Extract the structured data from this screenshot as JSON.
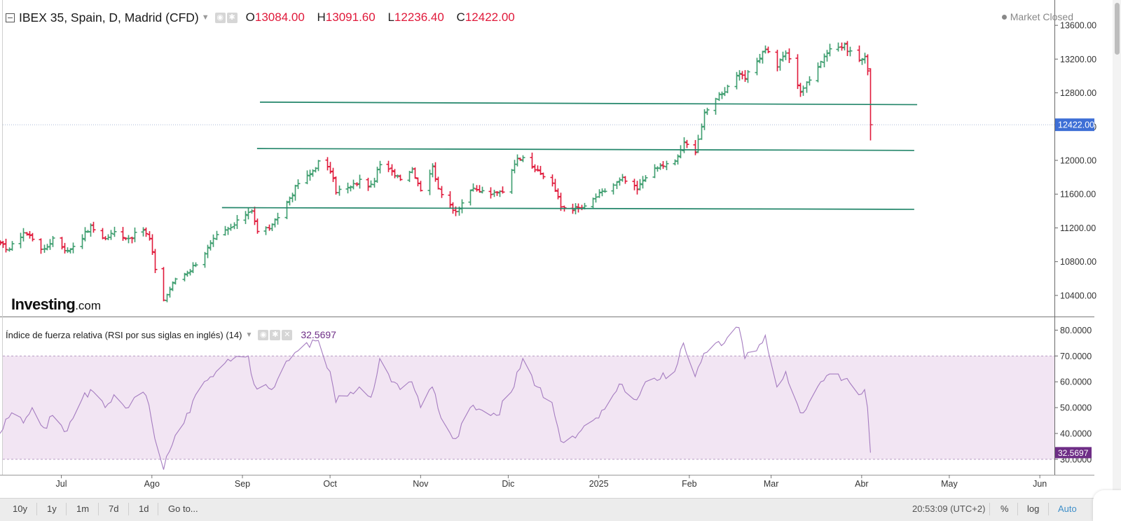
{
  "header": {
    "symbol": "IBEX 35, Spain, D, Madrid (CFD)",
    "open_label": "O",
    "open_value": "13084.00",
    "high_label": "H",
    "high_value": "13091.60",
    "low_label": "L",
    "low_value": "12236.40",
    "close_label": "C",
    "close_value": "12422.00",
    "market_status": "Market Closed"
  },
  "logo": {
    "name": "Investing",
    "tld": ".com"
  },
  "rsi_header": {
    "title": "Índice de fuerza relativa (RSI por sus siglas en inglés) (14)",
    "value": "32.5697"
  },
  "bottombar": {
    "ranges": [
      "10y",
      "1y",
      "1m",
      "7d",
      "1d",
      "Go to..."
    ],
    "clock": "20:53:09 (UTC+2)",
    "pct": "%",
    "log": "log",
    "auto": "Auto"
  },
  "colors": {
    "up": "#3d9d6e",
    "down": "#e0193a",
    "trendline": "#23866a",
    "rsi_line": "#a57cc0",
    "rsi_band": "#f2e5f3",
    "price_tag": "#3e6fd6",
    "rsi_tag": "#6e2d86"
  },
  "chart_data": [
    {
      "type": "ohlc",
      "title": "IBEX 35, Spain, D, Madrid (CFD)",
      "x_range": [
        "2024-06-10",
        "2025-06-06"
      ],
      "ylim": [
        10150,
        13900
      ],
      "y_ticks": [
        "13600.00",
        "13200.00",
        "12800.00",
        "12400.00",
        "12000.00",
        "11600.00",
        "11200.00",
        "10800.00",
        "10400.00"
      ],
      "x_tick_labels": [
        {
          "date": "2024-07-01",
          "label": "Jul"
        },
        {
          "date": "2024-08-01",
          "label": "Ago"
        },
        {
          "date": "2024-09-01",
          "label": "Sep"
        },
        {
          "date": "2024-10-01",
          "label": "Oct"
        },
        {
          "date": "2024-11-01",
          "label": "Nov"
        },
        {
          "date": "2024-12-01",
          "label": "Dic"
        },
        {
          "date": "2025-01-01",
          "label": "2025"
        },
        {
          "date": "2025-02-01",
          "label": "Feb"
        },
        {
          "date": "2025-03-01",
          "label": "Mar"
        },
        {
          "date": "2025-04-01",
          "label": "Abr"
        },
        {
          "date": "2025-05-01",
          "label": "May"
        },
        {
          "date": "2025-06-01",
          "label": "Jun"
        }
      ],
      "last_price": "12422.00",
      "close_keyframes": [
        [
          "2024-06-10",
          11000
        ],
        [
          "2024-06-13",
          10950
        ],
        [
          "2024-06-18",
          11150
        ],
        [
          "2024-06-21",
          11080
        ],
        [
          "2024-06-25",
          10930
        ],
        [
          "2024-06-28",
          11080
        ],
        [
          "2024-07-03",
          10920
        ],
        [
          "2024-07-08",
          11100
        ],
        [
          "2024-07-11",
          11210
        ],
        [
          "2024-07-16",
          11070
        ],
        [
          "2024-07-19",
          11150
        ],
        [
          "2024-07-24",
          11080
        ],
        [
          "2024-07-29",
          11180
        ],
        [
          "2024-07-31",
          11070
        ],
        [
          "2024-08-02",
          10720
        ],
        [
          "2024-08-05",
          10350
        ],
        [
          "2024-08-09",
          10600
        ],
        [
          "2024-08-14",
          10700
        ],
        [
          "2024-08-19",
          10910
        ],
        [
          "2024-08-23",
          11100
        ],
        [
          "2024-08-28",
          11200
        ],
        [
          "2024-09-02",
          11370
        ],
        [
          "2024-09-04",
          11420
        ],
        [
          "2024-09-06",
          11150
        ],
        [
          "2024-09-11",
          11220
        ],
        [
          "2024-09-16",
          11500
        ],
        [
          "2024-09-20",
          11730
        ],
        [
          "2024-09-24",
          11830
        ],
        [
          "2024-09-27",
          11980
        ],
        [
          "2024-10-01",
          11880
        ],
        [
          "2024-10-03",
          11640
        ],
        [
          "2024-10-08",
          11680
        ],
        [
          "2024-10-11",
          11760
        ],
        [
          "2024-10-15",
          11690
        ],
        [
          "2024-10-18",
          11950
        ],
        [
          "2024-10-22",
          11860
        ],
        [
          "2024-10-25",
          11800
        ],
        [
          "2024-10-29",
          11900
        ],
        [
          "2024-11-01",
          11660
        ],
        [
          "2024-11-05",
          11920
        ],
        [
          "2024-11-08",
          11570
        ],
        [
          "2024-11-13",
          11400
        ],
        [
          "2024-11-18",
          11650
        ],
        [
          "2024-11-22",
          11630
        ],
        [
          "2024-11-26",
          11600
        ],
        [
          "2024-11-29",
          11640
        ],
        [
          "2024-12-03",
          11980
        ],
        [
          "2024-12-06",
          12060
        ],
        [
          "2024-12-11",
          11860
        ],
        [
          "2024-12-16",
          11740
        ],
        [
          "2024-12-19",
          11450
        ],
        [
          "2024-12-23",
          11430
        ],
        [
          "2024-12-27",
          11440
        ],
        [
          "2024-12-31",
          11570
        ],
        [
          "2025-01-06",
          11710
        ],
        [
          "2025-01-09",
          11780
        ],
        [
          "2025-01-14",
          11650
        ],
        [
          "2025-01-17",
          11820
        ],
        [
          "2025-01-22",
          11930
        ],
        [
          "2025-01-27",
          11980
        ],
        [
          "2025-01-30",
          12200
        ],
        [
          "2025-02-03",
          12120
        ],
        [
          "2025-02-06",
          12540
        ],
        [
          "2025-02-10",
          12750
        ],
        [
          "2025-02-13",
          12830
        ],
        [
          "2025-02-17",
          13020
        ],
        [
          "2025-02-20",
          12970
        ],
        [
          "2025-02-24",
          13180
        ],
        [
          "2025-02-27",
          13330
        ],
        [
          "2025-03-03",
          13120
        ],
        [
          "2025-03-06",
          13280
        ],
        [
          "2025-03-11",
          12820
        ],
        [
          "2025-03-14",
          12950
        ],
        [
          "2025-03-18",
          13190
        ],
        [
          "2025-03-21",
          13330
        ],
        [
          "2025-03-26",
          13350
        ],
        [
          "2025-03-31",
          13190
        ],
        [
          "2025-04-02",
          13210
        ],
        [
          "2025-04-03",
          13084
        ]
      ],
      "last_bar": {
        "date": "2025-04-04",
        "open": 13084.0,
        "high": 13091.6,
        "low": 12236.4,
        "close": 12422.0
      },
      "trend_lines": [
        {
          "from": [
            "2024-09-07",
            12690
          ],
          "to": [
            "2025-04-20",
            12660
          ]
        },
        {
          "from": [
            "2024-09-06",
            12140
          ],
          "to": [
            "2025-04-19",
            12118
          ]
        },
        {
          "from": [
            "2024-08-25",
            11440
          ],
          "to": [
            "2025-04-19",
            11420
          ]
        }
      ]
    },
    {
      "type": "line",
      "title": "Índice de fuerza relativa (RSI por sus siglas en inglés) (14)",
      "ylim": [
        24,
        85
      ],
      "y_ticks": [
        "80.0000",
        "70.0000",
        "60.0000",
        "50.0000",
        "40.0000",
        "30.0000"
      ],
      "band": [
        30,
        70
      ],
      "last_value": "32.5697",
      "series": [
        {
          "keyframes": [
            [
              "2024-06-10",
              40
            ],
            [
              "2024-06-14",
              48
            ],
            [
              "2024-06-18",
              44
            ],
            [
              "2024-06-21",
              50
            ],
            [
              "2024-06-26",
              42
            ],
            [
              "2024-06-28",
              47
            ],
            [
              "2024-07-03",
              41
            ],
            [
              "2024-07-08",
              53
            ],
            [
              "2024-07-11",
              57
            ],
            [
              "2024-07-16",
              50
            ],
            [
              "2024-07-19",
              55
            ],
            [
              "2024-07-24",
              50
            ],
            [
              "2024-07-29",
              56
            ],
            [
              "2024-07-31",
              51
            ],
            [
              "2024-08-02",
              38
            ],
            [
              "2024-08-05",
              26
            ],
            [
              "2024-08-07",
              33
            ],
            [
              "2024-08-12",
              44
            ],
            [
              "2024-08-16",
              55
            ],
            [
              "2024-08-22",
              62
            ],
            [
              "2024-08-28",
              68
            ],
            [
              "2024-09-03",
              70
            ],
            [
              "2024-09-05",
              59
            ],
            [
              "2024-09-11",
              57
            ],
            [
              "2024-09-16",
              68
            ],
            [
              "2024-09-20",
              72
            ],
            [
              "2024-09-27",
              76
            ],
            [
              "2024-10-01",
              64
            ],
            [
              "2024-10-03",
              52
            ],
            [
              "2024-10-08",
              56
            ],
            [
              "2024-10-11",
              58
            ],
            [
              "2024-10-15",
              54
            ],
            [
              "2024-10-18",
              69
            ],
            [
              "2024-10-22",
              60
            ],
            [
              "2024-10-25",
              57
            ],
            [
              "2024-10-29",
              60
            ],
            [
              "2024-11-01",
              50
            ],
            [
              "2024-11-05",
              58
            ],
            [
              "2024-11-08",
              46
            ],
            [
              "2024-11-13",
              38
            ],
            [
              "2024-11-18",
              50
            ],
            [
              "2024-11-22",
              49
            ],
            [
              "2024-11-27",
              47
            ],
            [
              "2024-12-02",
              56
            ],
            [
              "2024-12-06",
              69
            ],
            [
              "2024-12-11",
              58
            ],
            [
              "2024-12-16",
              52
            ],
            [
              "2024-12-19",
              37
            ],
            [
              "2024-12-23",
              39
            ],
            [
              "2024-12-30",
              45
            ],
            [
              "2025-01-06",
              55
            ],
            [
              "2025-01-09",
              59
            ],
            [
              "2025-01-14",
              53
            ],
            [
              "2025-01-17",
              60
            ],
            [
              "2025-01-22",
              61
            ],
            [
              "2025-01-27",
              64
            ],
            [
              "2025-01-30",
              75
            ],
            [
              "2025-02-03",
              62
            ],
            [
              "2025-02-06",
              71
            ],
            [
              "2025-02-10",
              75
            ],
            [
              "2025-02-13",
              75
            ],
            [
              "2025-02-18",
              81
            ],
            [
              "2025-02-20",
              69
            ],
            [
              "2025-02-24",
              72
            ],
            [
              "2025-02-27",
              78
            ],
            [
              "2025-03-03",
              58
            ],
            [
              "2025-03-06",
              64
            ],
            [
              "2025-03-11",
              48
            ],
            [
              "2025-03-14",
              52
            ],
            [
              "2025-03-18",
              60
            ],
            [
              "2025-03-21",
              63
            ],
            [
              "2025-03-26",
              61
            ],
            [
              "2025-03-31",
              55
            ],
            [
              "2025-04-02",
              57
            ],
            [
              "2025-04-03",
              50
            ],
            [
              "2025-04-04",
              32.57
            ]
          ]
        }
      ]
    }
  ]
}
